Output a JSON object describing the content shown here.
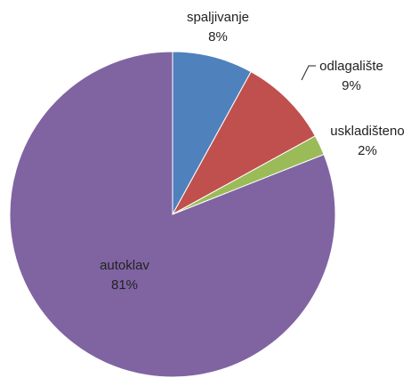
{
  "chart_data": {
    "type": "pie",
    "categories": [
      "spaljivanje",
      "odlagalište",
      "uskladišteno",
      "autoklav"
    ],
    "values": [
      8,
      9,
      2,
      81
    ],
    "value_labels": [
      "8%",
      "9%",
      "2%",
      "81%"
    ],
    "colors": [
      "#4f81bd",
      "#c0504d",
      "#9bbb59",
      "#8064a2"
    ]
  }
}
